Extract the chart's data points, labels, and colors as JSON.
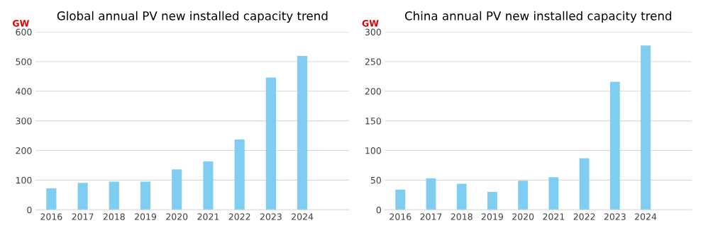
{
  "chart_data": [
    {
      "type": "bar",
      "title": "Global annual PV new installed capacity trend",
      "ylabel": "GW",
      "categories": [
        "2016",
        "2017",
        "2018",
        "2019",
        "2020",
        "2021",
        "2022",
        "2023",
        "2024",
        null
      ],
      "values": [
        72,
        91,
        95,
        95,
        136,
        163,
        237,
        446,
        519,
        null
      ],
      "color": "#7fcdf0",
      "ylim": [
        0,
        600
      ],
      "yticks": [
        0,
        100,
        200,
        300,
        400,
        500,
        600
      ],
      "grid": "y"
    },
    {
      "type": "bar",
      "title": "China annual PV new installed capacity trend",
      "ylabel": "GW",
      "categories": [
        "2016",
        "2017",
        "2018",
        "2019",
        "2020",
        "2021",
        "2022",
        "2023",
        "2024",
        null
      ],
      "values": [
        34,
        53,
        44,
        30,
        49,
        55,
        87,
        216,
        277,
        null
      ],
      "color": "#7fcdf0",
      "ylim": [
        0,
        300
      ],
      "yticks": [
        0,
        50,
        100,
        150,
        200,
        250,
        300
      ],
      "grid": "y"
    }
  ]
}
